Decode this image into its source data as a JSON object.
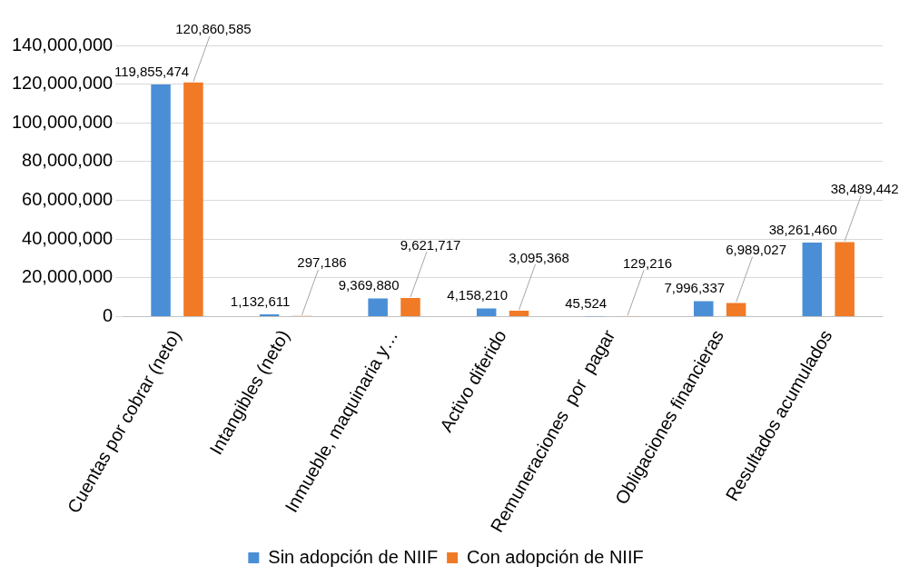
{
  "chart_data": {
    "type": "bar",
    "categories": [
      "Cuentas por cobrar (neto)",
      "Intangibles (neto)",
      "Inmueble, maquinaria y…",
      "Activo diferido",
      "Remuneraciones  por  pagar",
      "Obligaciones financieras",
      "Resultados acumulados"
    ],
    "series": [
      {
        "name": "Sin adopción de NIIF",
        "color": "#4a8fd6",
        "values": [
          119855474,
          1132611,
          9369880,
          4158210,
          45524,
          7996337,
          38261460
        ],
        "value_labels": [
          "119,855,474",
          "1,132,611",
          "9,369,880",
          "4,158,210",
          "45,524",
          "7,996,337",
          "38,261,460"
        ]
      },
      {
        "name": "Con adopción de NIIF",
        "color": "#f07a26",
        "values": [
          120860585,
          297186,
          9621717,
          3095368,
          129216,
          6989027,
          38489442
        ],
        "value_labels": [
          "120,860,585",
          "297,186",
          "9,621,717",
          "3,095,368",
          "129,216",
          "6,989,027",
          "38,489,442"
        ]
      }
    ],
    "ylim": [
      0,
      140000000
    ],
    "yticks": [
      {
        "value": 0,
        "label": "0"
      },
      {
        "value": 20000000,
        "label": "20,000,000"
      },
      {
        "value": 40000000,
        "label": "40,000,000"
      },
      {
        "value": 60000000,
        "label": "60,000,000"
      },
      {
        "value": 80000000,
        "label": "80,000,000"
      },
      {
        "value": 100000000,
        "label": "100,000,000"
      },
      {
        "value": 120000000,
        "label": "120,000,000"
      },
      {
        "value": 140000000,
        "label": "140,000,000"
      }
    ],
    "grid": "y",
    "legend": "bottom"
  }
}
